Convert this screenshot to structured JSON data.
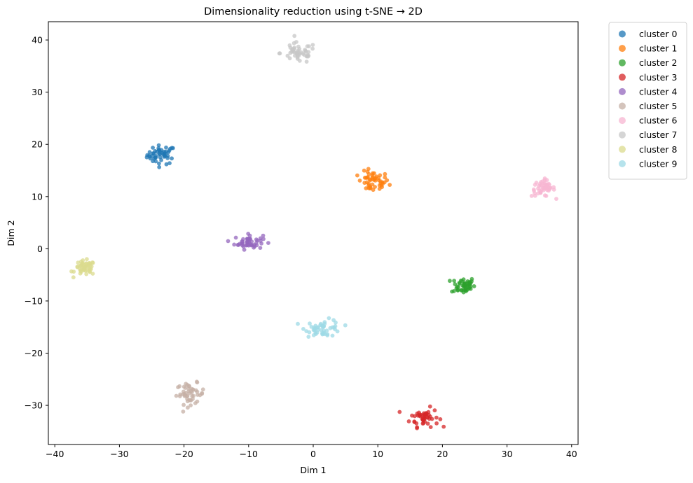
{
  "chart_data": {
    "type": "scatter",
    "title": "Dimensionality reduction using t-SNE → 2D",
    "xlabel": "Dim 1",
    "ylabel": "Dim 2",
    "xlim": [
      -41,
      41
    ],
    "ylim": [
      -37.5,
      43.5
    ],
    "xticks": [
      -40,
      -30,
      -20,
      -10,
      0,
      10,
      20,
      30,
      40
    ],
    "xtick_labels": [
      "−40",
      "−30",
      "−20",
      "−10",
      "0",
      "10",
      "20",
      "30",
      "40"
    ],
    "yticks": [
      -30,
      -20,
      -10,
      0,
      10,
      20,
      30,
      40
    ],
    "ytick_labels": [
      "−30",
      "−20",
      "−10",
      "0",
      "10",
      "20",
      "30",
      "40"
    ],
    "grid": false,
    "legend_position": "outside-top-right",
    "series": [
      {
        "name": "cluster 0",
        "color": "#1f77b4",
        "center": [
          -23.5,
          18.0
        ],
        "spread": [
          1.1,
          0.9
        ]
      },
      {
        "name": "cluster 1",
        "color": "#ff7f0e",
        "center": [
          9.3,
          12.8
        ],
        "spread": [
          1.2,
          1.0
        ]
      },
      {
        "name": "cluster 2",
        "color": "#2ca02c",
        "center": [
          23.2,
          -7.0
        ],
        "spread": [
          0.9,
          0.8
        ]
      },
      {
        "name": "cluster 3",
        "color": "#d62728",
        "center": [
          17.2,
          -32.3
        ],
        "spread": [
          1.1,
          0.9
        ]
      },
      {
        "name": "cluster 4",
        "color": "#9467bd",
        "center": [
          -10.0,
          1.3
        ],
        "spread": [
          1.1,
          0.7
        ]
      },
      {
        "name": "cluster 5",
        "color": "#c5b0a5",
        "center": [
          -19.0,
          -27.8
        ],
        "spread": [
          1.1,
          1.0
        ]
      },
      {
        "name": "cluster 6",
        "color": "#f7b6d2",
        "center": [
          35.6,
          11.6
        ],
        "spread": [
          0.9,
          0.8
        ]
      },
      {
        "name": "cluster 7",
        "color": "#c7c7c7",
        "center": [
          -2.3,
          37.5
        ],
        "spread": [
          1.4,
          1.0
        ]
      },
      {
        "name": "cluster 8",
        "color": "#dbdb8d",
        "center": [
          -35.3,
          -3.7
        ],
        "spread": [
          0.8,
          0.7
        ]
      },
      {
        "name": "cluster 9",
        "color": "#9edae5",
        "center": [
          1.6,
          -15.2
        ],
        "spread": [
          1.4,
          0.8
        ]
      }
    ],
    "points_per_series": 50
  }
}
